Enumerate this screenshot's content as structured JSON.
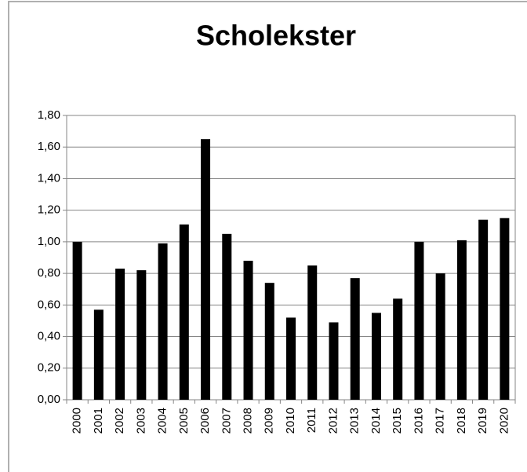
{
  "chart_data": {
    "type": "bar",
    "title": "Scholekster",
    "categories": [
      "2000",
      "2001",
      "2002",
      "2003",
      "2004",
      "2005",
      "2006",
      "2007",
      "2008",
      "2009",
      "2010",
      "2011",
      "2012",
      "2013",
      "2014",
      "2015",
      "2016",
      "2017",
      "2018",
      "2019",
      "2020"
    ],
    "values": [
      1.0,
      0.57,
      0.83,
      0.82,
      0.99,
      1.11,
      1.65,
      1.05,
      0.88,
      0.74,
      0.52,
      0.85,
      0.49,
      0.77,
      0.55,
      0.64,
      1.0,
      0.8,
      1.01,
      1.14,
      1.15
    ],
    "color": "#000000",
    "ylim": [
      0,
      1.8
    ],
    "yticks": [
      {
        "value": 0,
        "label": "0,00"
      },
      {
        "value": 0.2,
        "label": "0,20"
      },
      {
        "value": 0.4,
        "label": "0,40"
      },
      {
        "value": 0.6,
        "label": "0,60"
      },
      {
        "value": 0.8,
        "label": "0,80"
      },
      {
        "value": 1.0,
        "label": "1,00"
      },
      {
        "value": 1.2,
        "label": "1,20"
      },
      {
        "value": 1.4,
        "label": "1,40"
      },
      {
        "value": 1.6,
        "label": "1,60"
      },
      {
        "value": 1.8,
        "label": "1,80"
      }
    ],
    "grid": true
  }
}
